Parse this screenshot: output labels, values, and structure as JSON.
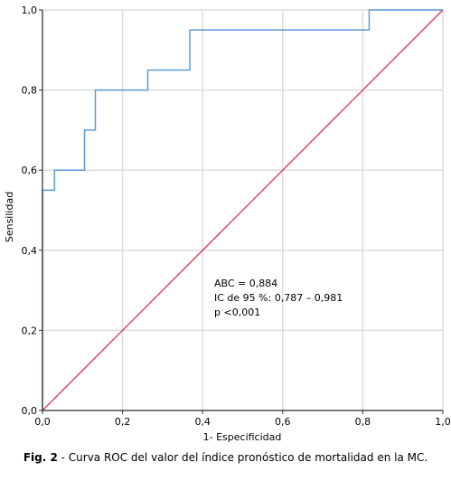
{
  "chart_data": {
    "type": "line",
    "xlabel": "1- Especificidad",
    "ylabel": "Sensilidad",
    "xlim": [
      0,
      1
    ],
    "ylim": [
      0,
      1
    ],
    "x_ticks": [
      "0,0",
      "0,2",
      "0,4",
      "0,6",
      "0,8",
      "1,0"
    ],
    "y_ticks": [
      "0,0",
      "0,2",
      "0,4",
      "0,6",
      "0,8",
      "1,0"
    ],
    "grid": true,
    "series": [
      {
        "color": "#5b9bd5",
        "points": [
          [
            0.0,
            0.0
          ],
          [
            0.0,
            0.55
          ],
          [
            0.03,
            0.55
          ],
          [
            0.03,
            0.6
          ],
          [
            0.105,
            0.6
          ],
          [
            0.105,
            0.7
          ],
          [
            0.132,
            0.7
          ],
          [
            0.132,
            0.8
          ],
          [
            0.263,
            0.8
          ],
          [
            0.263,
            0.85
          ],
          [
            0.368,
            0.85
          ],
          [
            0.368,
            0.95
          ],
          [
            0.816,
            0.95
          ],
          [
            0.816,
            1.0
          ],
          [
            1.0,
            1.0
          ]
        ]
      },
      {
        "color": "#e0455e",
        "points": [
          [
            0.0,
            0.0
          ],
          [
            1.0,
            1.0
          ]
        ]
      }
    ],
    "annotations": [
      "ABC = 0,884",
      "IC de 95 %: 0,787 – 0,981",
      "p <0,001"
    ]
  },
  "caption": {
    "label": "Fig. 2",
    "text": " - Curva ROC del valor del índice pronóstico de mortalidad en la MC."
  }
}
